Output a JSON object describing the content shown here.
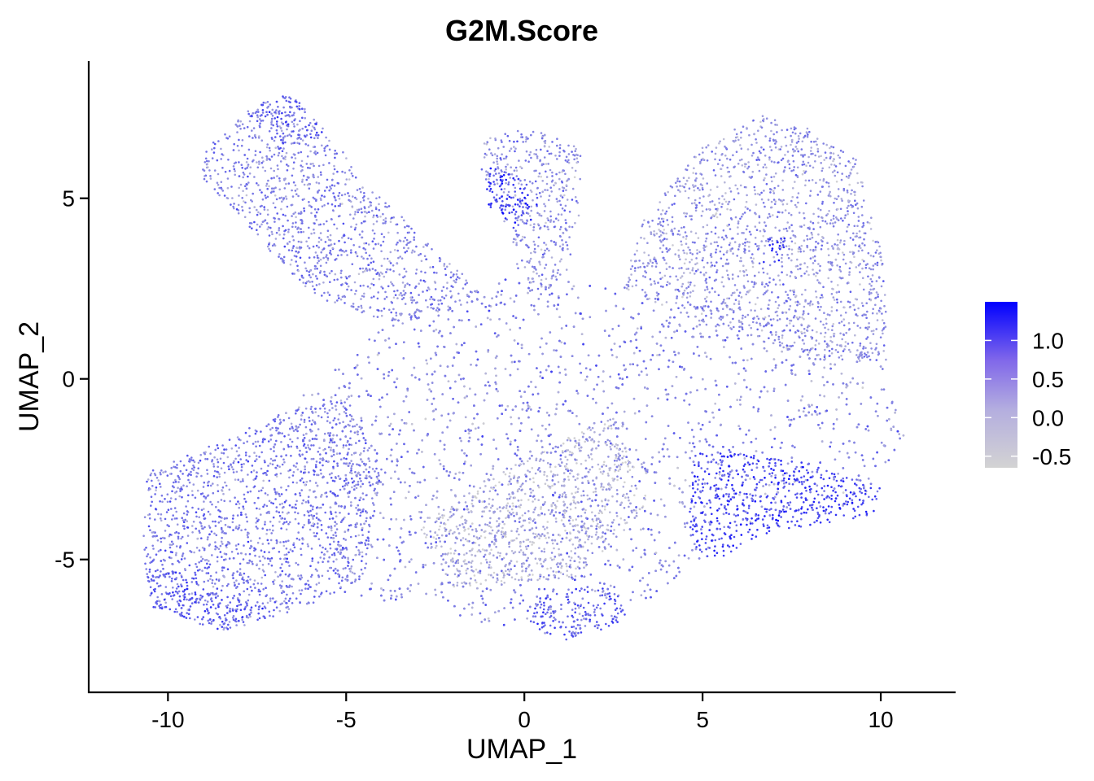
{
  "chart_data": {
    "type": "scatter",
    "title": "G2M.Score",
    "xlabel": "UMAP_1",
    "ylabel": "UMAP_2",
    "xlim": [
      -12.2,
      12.1
    ],
    "ylim": [
      -8.7,
      8.8
    ],
    "x_ticks": [
      -10,
      -5,
      0,
      5,
      10
    ],
    "y_ticks": [
      -5,
      0,
      5
    ],
    "x_tick_labels": [
      "-10",
      "-5",
      "0",
      "5",
      "10"
    ],
    "y_tick_labels": [
      "-5",
      "0",
      "5"
    ],
    "grid": false,
    "point_color_encodes": "G2M.Score",
    "colorbar": {
      "min": -0.65,
      "max": 1.5,
      "ticks": [
        1.0,
        0.5,
        0.0,
        -0.5
      ],
      "tick_labels": [
        "1.0",
        "0.5",
        "0.0",
        "-0.5"
      ],
      "low_color": "#d3d3d3",
      "high_color": "#0000ff",
      "placement": "right"
    },
    "regions": [
      {
        "name": "upper-left-arm",
        "outline": [
          [
            -8.9,
            6.4
          ],
          [
            -7.8,
            7.5
          ],
          [
            -6.5,
            7.9
          ],
          [
            -5.5,
            6.8
          ],
          [
            -4.2,
            5.2
          ],
          [
            -2.5,
            3.6
          ],
          [
            -1,
            2.3
          ],
          [
            -3.5,
            1.5
          ],
          [
            -5.8,
            2.2
          ],
          [
            -7.5,
            3.9
          ],
          [
            -9.1,
            5.6
          ]
        ],
        "mean_score": 0.15
      },
      {
        "name": "upper-left-arm-tip",
        "outline": [
          [
            -7.8,
            7.4
          ],
          [
            -6.6,
            7.9
          ],
          [
            -5.6,
            6.8
          ],
          [
            -6.8,
            6.2
          ]
        ],
        "mean_score": 0.55
      },
      {
        "name": "top-middle-stalk",
        "outline": [
          [
            -1.2,
            6.6
          ],
          [
            0,
            7
          ],
          [
            1.6,
            6.4
          ],
          [
            1.6,
            4.5
          ],
          [
            1.2,
            3
          ],
          [
            0.5,
            2.3
          ],
          [
            -0.2,
            3
          ],
          [
            -0.6,
            4.5
          ],
          [
            -1.2,
            5.4
          ]
        ],
        "mean_score": 0.05
      },
      {
        "name": "top-middle-left-lobe",
        "outline": [
          [
            -1.2,
            5.9
          ],
          [
            -0.3,
            5.8
          ],
          [
            0.5,
            4.6
          ],
          [
            -0.2,
            4.1
          ],
          [
            -1.1,
            4.8
          ]
        ],
        "mean_score": 0.9
      },
      {
        "name": "upper-right-arm",
        "outline": [
          [
            3.2,
            4.2
          ],
          [
            5,
            6.5
          ],
          [
            6.7,
            7.3
          ],
          [
            7.7,
            7.1
          ],
          [
            9.3,
            6.1
          ],
          [
            10.1,
            3.2
          ],
          [
            10.2,
            0.5
          ],
          [
            8.5,
            0.5
          ],
          [
            5,
            1.5
          ],
          [
            2.8,
            2.5
          ]
        ],
        "mean_score": 0.0
      },
      {
        "name": "lower-left-lobe",
        "outline": [
          [
            -10.6,
            -2.6
          ],
          [
            -9.2,
            -2
          ],
          [
            -7,
            -1
          ],
          [
            -5,
            -0.5
          ],
          [
            -4,
            -2.5
          ],
          [
            -4.5,
            -5.5
          ],
          [
            -6,
            -6.3
          ],
          [
            -8.5,
            -7
          ],
          [
            -10.5,
            -6.2
          ],
          [
            -10.7,
            -4.5
          ]
        ],
        "mean_score": 0.25
      },
      {
        "name": "lower-left-purple-edge",
        "outline": [
          [
            -10.7,
            -5
          ],
          [
            -9,
            -5.6
          ],
          [
            -7,
            -6.4
          ],
          [
            -8.5,
            -7
          ],
          [
            -10.5,
            -6.3
          ]
        ],
        "mean_score": 0.6
      },
      {
        "name": "central-body",
        "outline": [
          [
            -7.5,
            -1.5
          ],
          [
            -3.5,
            1.8
          ],
          [
            -0.5,
            2.8
          ],
          [
            3,
            2.6
          ],
          [
            7,
            1.5
          ],
          [
            10,
            0.5
          ],
          [
            10.7,
            -1.5
          ],
          [
            9.5,
            -3.5
          ],
          [
            7,
            -3.8
          ],
          [
            5,
            -5
          ],
          [
            3,
            -6.5
          ],
          [
            1,
            -7.3
          ],
          [
            -1,
            -6.8
          ],
          [
            -3,
            -6.2
          ],
          [
            -5,
            -6.3
          ],
          [
            -6,
            -4
          ]
        ],
        "mean_score": 0.1
      },
      {
        "name": "lower-right-high-g2m",
        "outline": [
          [
            4.8,
            -2
          ],
          [
            7.5,
            -2.2
          ],
          [
            10,
            -3
          ],
          [
            9.8,
            -3.8
          ],
          [
            7,
            -4.2
          ],
          [
            5,
            -5.2
          ],
          [
            4.6,
            -4
          ]
        ],
        "mean_score": 0.85
      },
      {
        "name": "bottom-center-tail",
        "outline": [
          [
            0.5,
            -5.8
          ],
          [
            2.5,
            -5.8
          ],
          [
            3,
            -6.6
          ],
          [
            1.3,
            -7.3
          ],
          [
            0.1,
            -6.8
          ]
        ],
        "mean_score": 0.55
      },
      {
        "name": "central-light-patch",
        "outline": [
          [
            -3,
            -4
          ],
          [
            -0.5,
            -2.5
          ],
          [
            2.5,
            -1
          ],
          [
            3.5,
            -3.5
          ],
          [
            1.5,
            -5.5
          ],
          [
            -2,
            -5.8
          ]
        ],
        "mean_score": -0.3
      },
      {
        "name": "right-small-dense-spot",
        "outline": [
          [
            6.7,
            3.9
          ],
          [
            7.3,
            3.9
          ],
          [
            7.3,
            3.2
          ],
          [
            6.7,
            3.2
          ]
        ],
        "mean_score": 0.9
      }
    ]
  }
}
